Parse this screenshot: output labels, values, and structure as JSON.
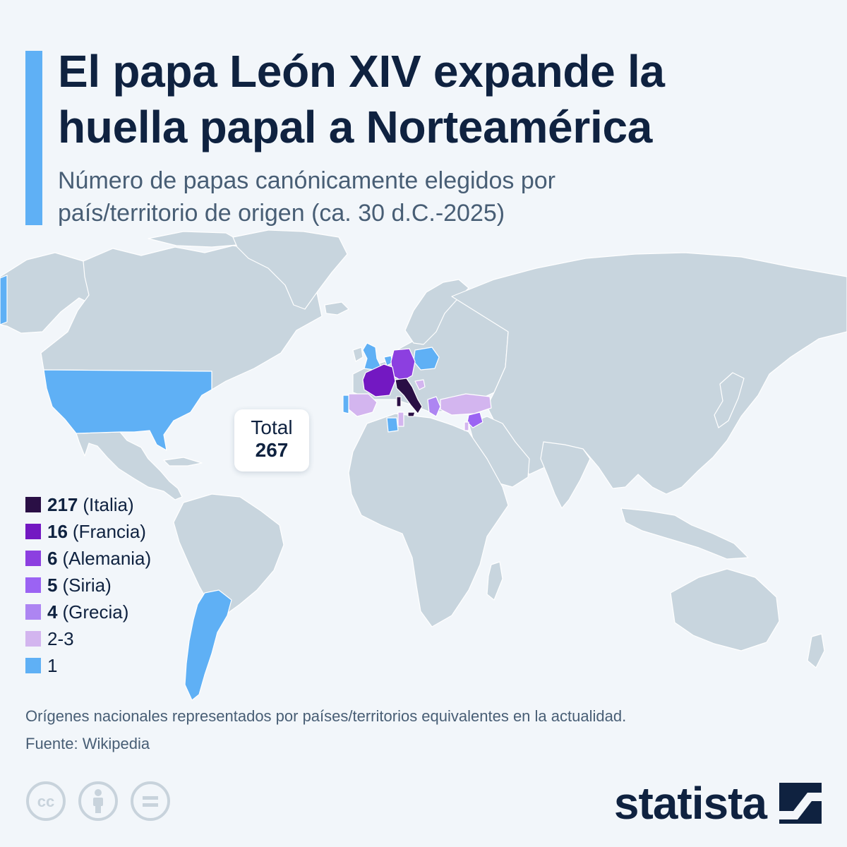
{
  "title": {
    "line1": "El papa León XIV expande la",
    "line2": "huella papal a Norteamérica"
  },
  "subtitle": {
    "line1": "Número de papas canónicamente elegidos por",
    "line2": "país/territorio de origen (ca. 30 d.C.-2025)"
  },
  "total": {
    "label": "Total",
    "value": "267"
  },
  "legend": [
    {
      "value": "217",
      "label": "(Italia)",
      "color": "#2a0f45"
    },
    {
      "value": "16",
      "label": "(Francia)",
      "color": "#7318c2"
    },
    {
      "value": "6",
      "label": "(Alemania)",
      "color": "#8c3fe0"
    },
    {
      "value": "5",
      "label": "(Siria)",
      "color": "#9b63f3"
    },
    {
      "value": "4",
      "label": "(Grecia)",
      "color": "#ad85f2"
    },
    {
      "value": "",
      "label": "2-3",
      "color": "#d3b5ef"
    },
    {
      "value": "",
      "label": "1",
      "color": "#5fb0f5"
    }
  ],
  "map": {
    "base_color": "#c8d5de",
    "border_color": "#ffffff",
    "regions": [
      {
        "name": "Italia",
        "popes": "217",
        "color": "#2a0f45"
      },
      {
        "name": "Francia",
        "popes": "16",
        "color": "#7318c2"
      },
      {
        "name": "Alemania",
        "popes": "6",
        "color": "#8c3fe0"
      },
      {
        "name": "Siria",
        "popes": "5",
        "color": "#9b63f3"
      },
      {
        "name": "Grecia",
        "popes": "4",
        "color": "#ad85f2"
      },
      {
        "name": "España",
        "popes": "2-3",
        "color": "#d3b5ef"
      },
      {
        "name": "Turquía",
        "popes": "2-3",
        "color": "#d3b5ef"
      },
      {
        "name": "Túnez",
        "popes": "2-3",
        "color": "#d3b5ef"
      },
      {
        "name": "Israel/Palestina",
        "popes": "2-3",
        "color": "#d3b5ef"
      },
      {
        "name": "Croacia",
        "popes": "2-3",
        "color": "#d3b5ef"
      },
      {
        "name": "Estados Unidos",
        "popes": "1",
        "color": "#5fb0f5"
      },
      {
        "name": "Argentina",
        "popes": "1",
        "color": "#5fb0f5"
      },
      {
        "name": "Reino Unido",
        "popes": "1",
        "color": "#5fb0f5"
      },
      {
        "name": "Países Bajos",
        "popes": "1",
        "color": "#5fb0f5"
      },
      {
        "name": "Polonia",
        "popes": "1",
        "color": "#5fb0f5"
      },
      {
        "name": "Portugal",
        "popes": "1",
        "color": "#5fb0f5"
      },
      {
        "name": "Argelia",
        "popes": "1",
        "color": "#5fb0f5"
      }
    ]
  },
  "footnote": "Orígenes nacionales representados por países/territorios equivalentes en la actualidad.",
  "source": "Fuente: Wikipedia",
  "license_icons": [
    "creative-commons-icon",
    "attribution-icon",
    "no-derivatives-icon"
  ],
  "brand": {
    "name": "statista",
    "logo": "statista-logo-icon",
    "color": "#0f2240"
  }
}
